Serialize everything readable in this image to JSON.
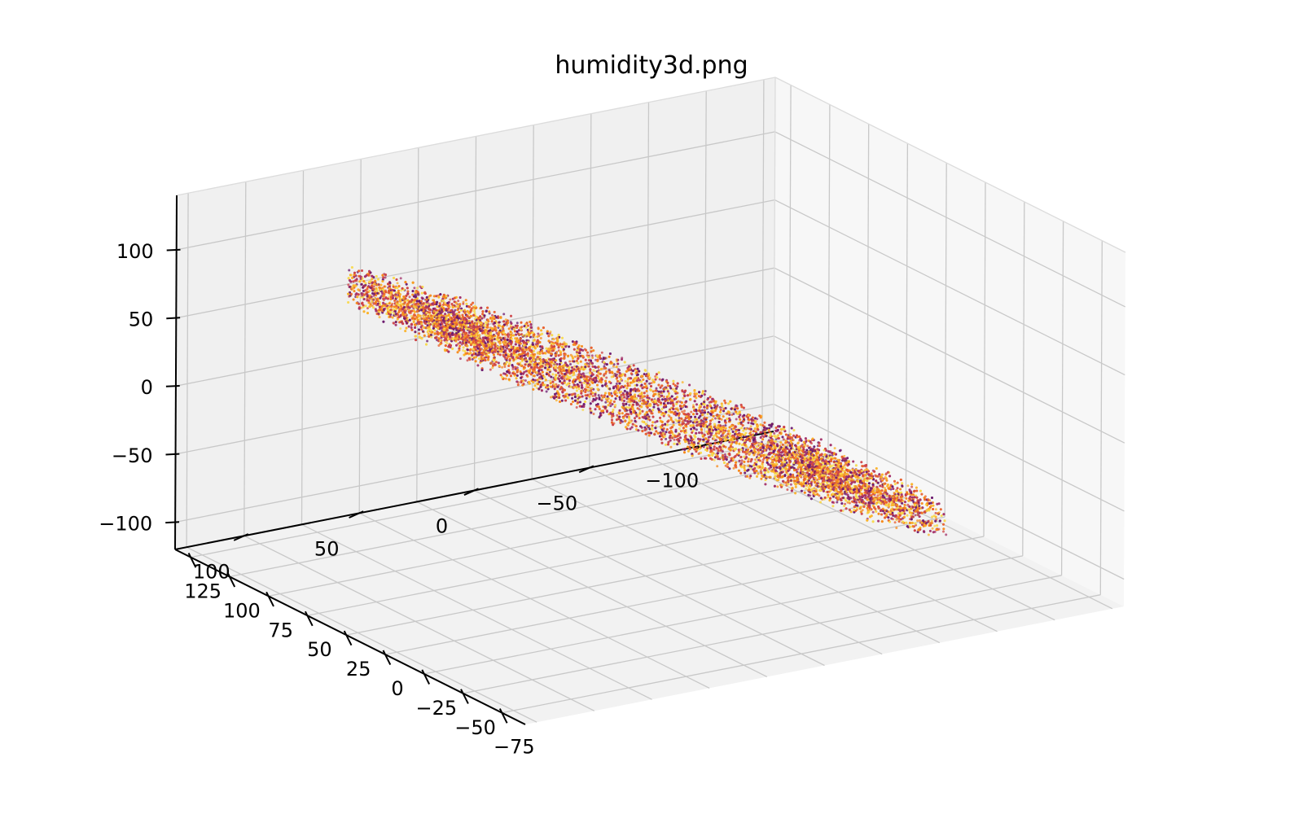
{
  "chart_data": {
    "type": "scatter",
    "projection": "3d",
    "title": "humidity3d.png",
    "xlabel": "",
    "ylabel": "",
    "zlabel": "",
    "grid": true,
    "colormap": "inferno",
    "xlim": [
      -90,
      135
    ],
    "ylim": [
      -130,
      130
    ],
    "zlim": [
      -120,
      140
    ],
    "x_ticks": [
      "125",
      "100",
      "75",
      "50",
      "25",
      "0",
      "−25",
      "−50",
      "−75"
    ],
    "y_ticks": [
      "−100",
      "−50",
      "0",
      "50",
      "100"
    ],
    "z_ticks": [
      "100",
      "50",
      "0",
      "−50",
      "−100"
    ],
    "shape": {
      "description": "points form an annulus in the x/y plane, tilted so z rises from the y=-100 side to the y=+100 side",
      "inner_radius": 60,
      "outer_radius": 110,
      "center": [
        25,
        0
      ],
      "z_span": [
        -95,
        110
      ],
      "n_points": 14000
    },
    "colors": [
      "#6b186e",
      "#a3306a",
      "#cd4347",
      "#e8602d",
      "#f7891a",
      "#fbb32a",
      "#f8d94d"
    ]
  }
}
